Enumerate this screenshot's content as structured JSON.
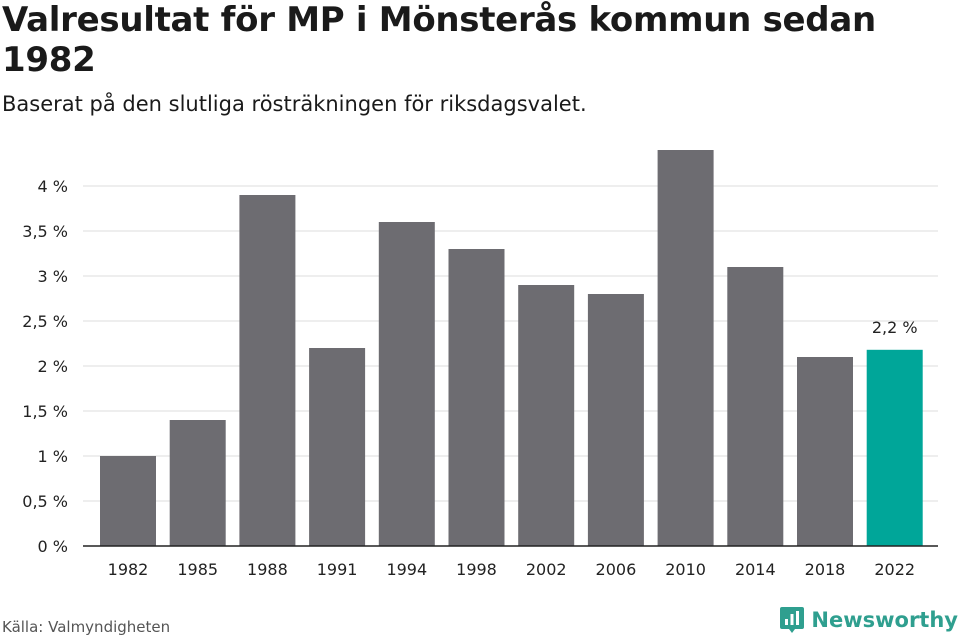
{
  "title": "Valresultat för MP i Mönsterås kommun sedan 1982",
  "subtitle": "Baserat på den slutliga rösträkningen för riksdagsvalet.",
  "source": "Källa: Valmyndigheten",
  "brand": {
    "name": "Newsworthy",
    "icon": "newsworthy-logo-icon"
  },
  "colors": {
    "bar": "#6d6c71",
    "highlight": "#00a699",
    "grid": "#dddddd",
    "axis": "#222222"
  },
  "chart_data": {
    "type": "bar",
    "categories": [
      "1982",
      "1985",
      "1988",
      "1991",
      "1994",
      "1998",
      "2002",
      "2006",
      "2010",
      "2014",
      "2018",
      "2022"
    ],
    "values": [
      1.0,
      1.4,
      3.9,
      2.2,
      3.6,
      3.3,
      2.9,
      2.8,
      4.4,
      3.1,
      2.1,
      2.18
    ],
    "highlight_index": 11,
    "data_labels": [
      {
        "index": 11,
        "text": "2,2 %"
      }
    ],
    "ylim": [
      0,
      4.4
    ],
    "yticks": [
      {
        "value": 0,
        "label": "0 %"
      },
      {
        "value": 0.5,
        "label": "0,5 %"
      },
      {
        "value": 1,
        "label": "1 %"
      },
      {
        "value": 1.5,
        "label": "1,5 %"
      },
      {
        "value": 2,
        "label": "2 %"
      },
      {
        "value": 2.5,
        "label": "2,5 %"
      },
      {
        "value": 3,
        "label": "3 %"
      },
      {
        "value": 3.5,
        "label": "3,5 %"
      },
      {
        "value": 4,
        "label": "4 %"
      }
    ],
    "grid": true,
    "xlabel": "",
    "ylabel": ""
  }
}
